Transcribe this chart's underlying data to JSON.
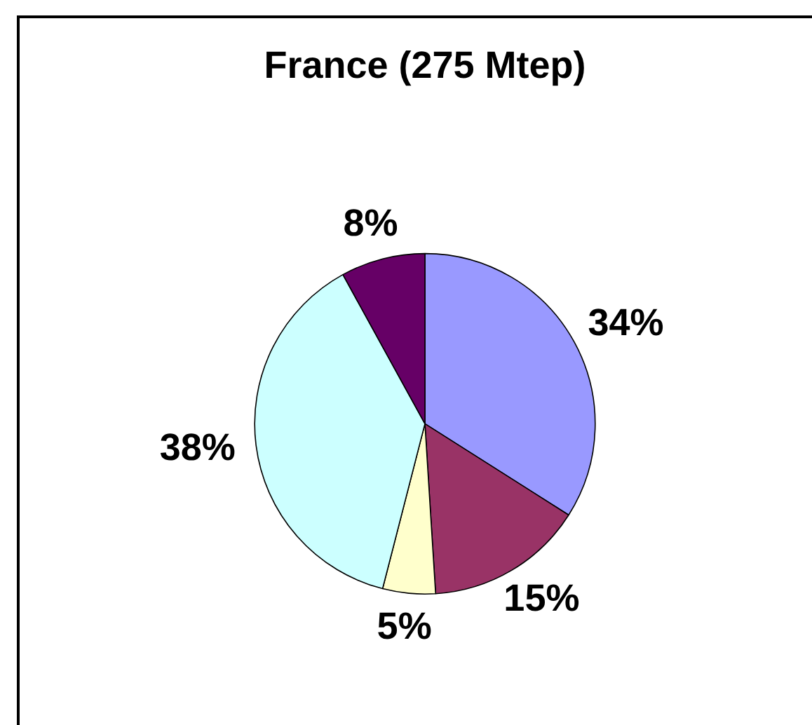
{
  "chart_data": {
    "type": "pie",
    "title": "France (275 Mtep)",
    "categories": [
      null,
      null,
      null,
      null,
      null
    ],
    "values": [
      34,
      15,
      5,
      38,
      8
    ],
    "colors": [
      "#9999ff",
      "#993366",
      "#ffffcc",
      "#ccffff",
      "#660066"
    ],
    "value_labels": [
      "34%",
      "15%",
      "5%",
      "38%",
      "8%"
    ],
    "legend": false
  }
}
